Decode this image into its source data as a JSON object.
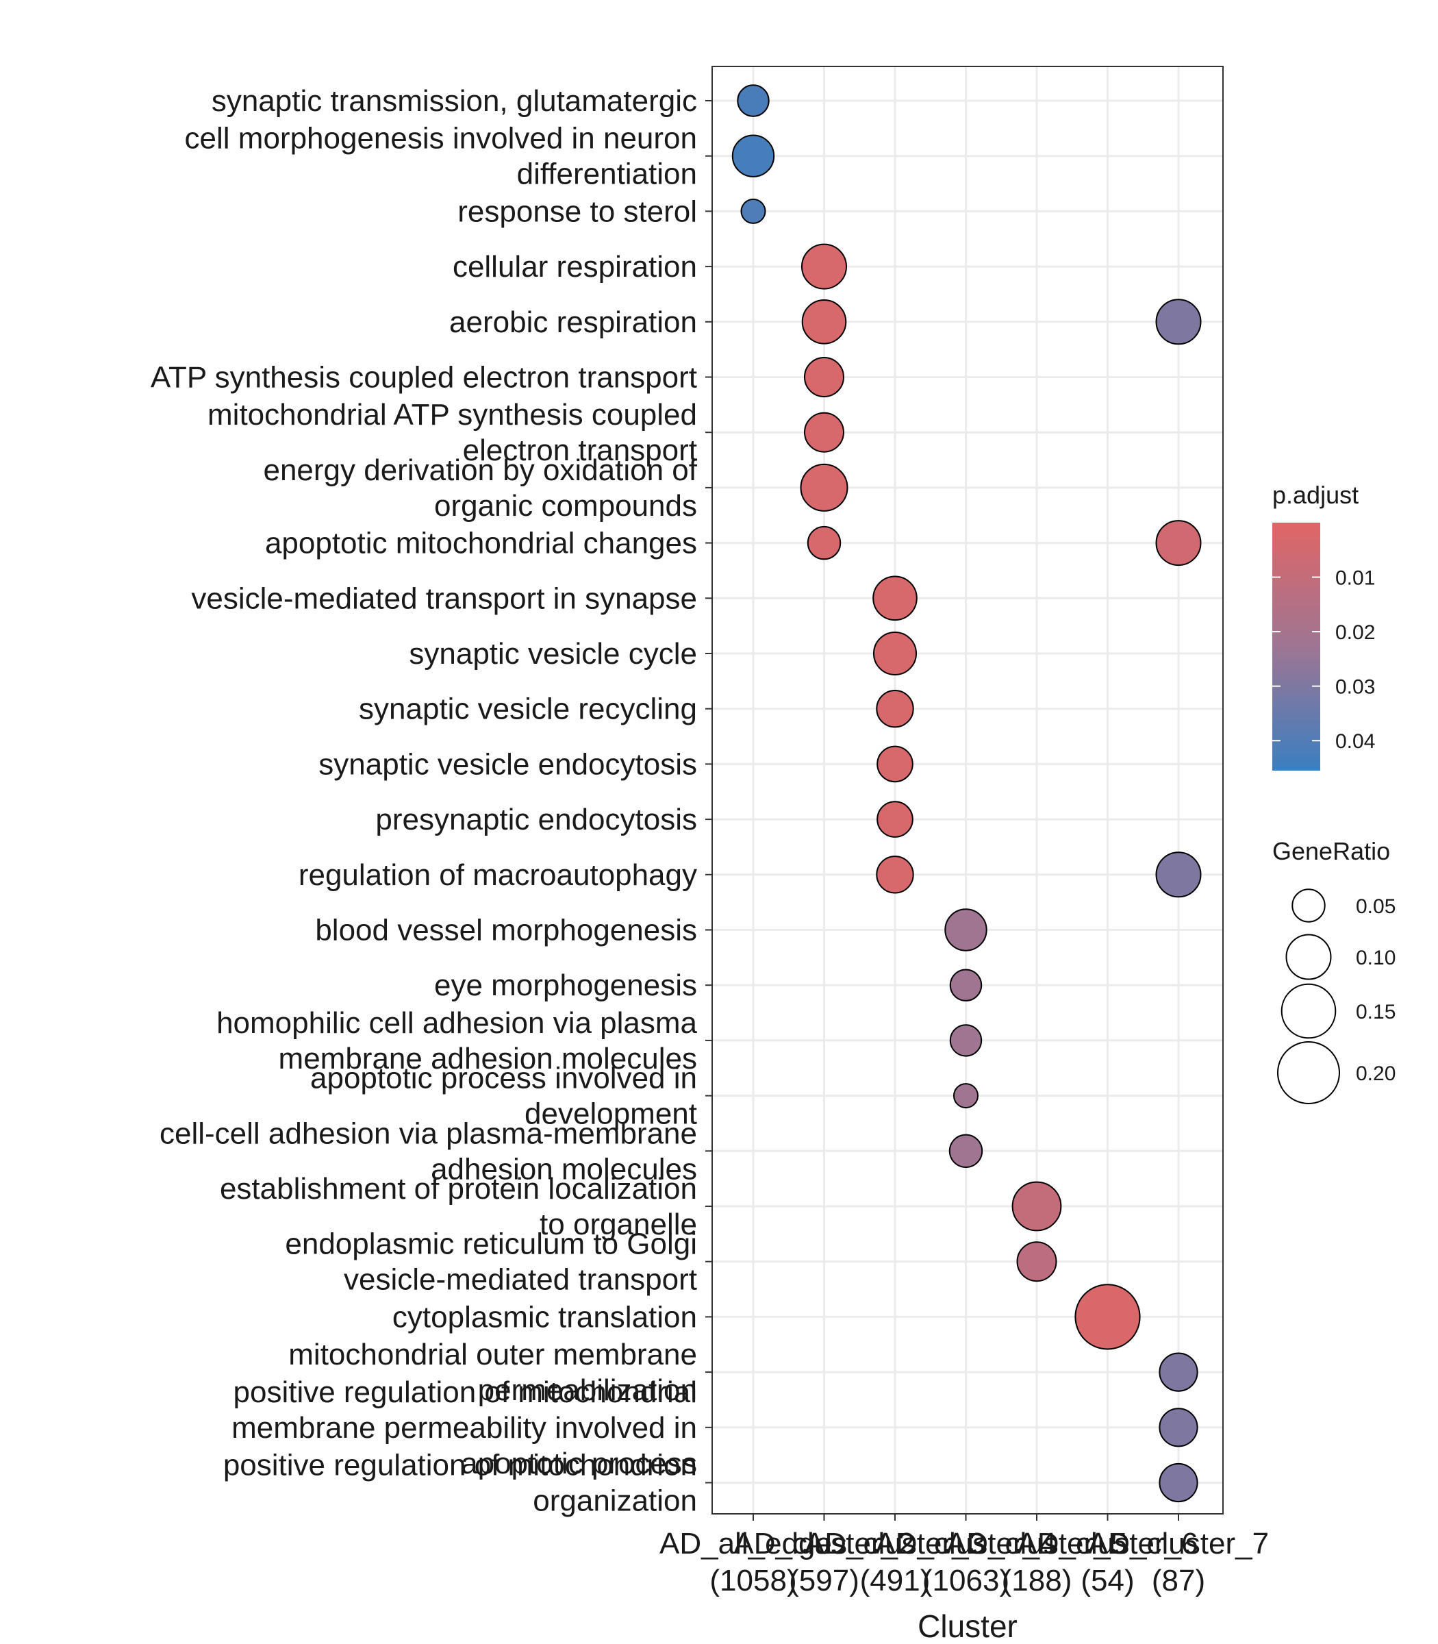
{
  "chart_data": {
    "type": "dotplot",
    "xlabel": "Cluster",
    "ylabel": "",
    "grid": true,
    "clusters": [
      {
        "name": "AD_all_edges",
        "count": "(1058)"
      },
      {
        "name": "AD_cluster_2",
        "count": "(597)"
      },
      {
        "name": "AD_cluster_3",
        "count": "(491)"
      },
      {
        "name": "AD_cluster_4",
        "count": "(1063)"
      },
      {
        "name": "AD_cluster_5",
        "count": "(188)"
      },
      {
        "name": "AD_cluster_6",
        "count": "(54)"
      },
      {
        "name": "AD_cluster_7",
        "count": "(87)"
      }
    ],
    "terms": [
      [
        "synaptic transmission, glutamatergic"
      ],
      [
        "cell morphogenesis involved in neuron",
        "differentiation"
      ],
      [
        "response to sterol"
      ],
      [
        "cellular respiration"
      ],
      [
        "aerobic respiration"
      ],
      [
        "ATP synthesis coupled electron transport"
      ],
      [
        "mitochondrial ATP synthesis coupled",
        "electron transport"
      ],
      [
        "energy derivation by oxidation of",
        "organic compounds"
      ],
      [
        "apoptotic mitochondrial changes"
      ],
      [
        "vesicle-mediated transport in synapse"
      ],
      [
        "synaptic vesicle cycle"
      ],
      [
        "synaptic vesicle recycling"
      ],
      [
        "synaptic vesicle endocytosis"
      ],
      [
        "presynaptic endocytosis"
      ],
      [
        "regulation of macroautophagy"
      ],
      [
        "blood vessel morphogenesis"
      ],
      [
        "eye morphogenesis"
      ],
      [
        "homophilic cell adhesion via plasma",
        "membrane adhesion molecules"
      ],
      [
        "apoptotic process involved in",
        "development"
      ],
      [
        "cell-cell adhesion via plasma-membrane",
        "adhesion molecules"
      ],
      [
        "establishment of protein localization",
        "to organelle"
      ],
      [
        "endoplasmic reticulum to Golgi",
        "vesicle-mediated transport"
      ],
      [
        "cytoplasmic translation"
      ],
      [
        "mitochondrial outer membrane",
        "permeabilization"
      ],
      [
        "positive regulation of mitochondrial",
        "membrane permeability involved in",
        "apoptotic process"
      ],
      [
        "positive regulation of mitochondrion",
        "organization"
      ]
    ],
    "points": [
      {
        "cluster": 0,
        "term": 0,
        "gene_ratio": 0.045,
        "p_adjust": 0.042
      },
      {
        "cluster": 0,
        "term": 1,
        "gene_ratio": 0.085,
        "p_adjust": 0.043
      },
      {
        "cluster": 0,
        "term": 2,
        "gene_ratio": 0.025,
        "p_adjust": 0.041
      },
      {
        "cluster": 1,
        "term": 3,
        "gene_ratio": 0.1,
        "p_adjust": 0.003
      },
      {
        "cluster": 1,
        "term": 4,
        "gene_ratio": 0.095,
        "p_adjust": 0.003
      },
      {
        "cluster": 1,
        "term": 5,
        "gene_ratio": 0.075,
        "p_adjust": 0.003
      },
      {
        "cluster": 1,
        "term": 6,
        "gene_ratio": 0.075,
        "p_adjust": 0.003
      },
      {
        "cluster": 1,
        "term": 7,
        "gene_ratio": 0.11,
        "p_adjust": 0.003
      },
      {
        "cluster": 1,
        "term": 8,
        "gene_ratio": 0.05,
        "p_adjust": 0.003
      },
      {
        "cluster": 2,
        "term": 9,
        "gene_ratio": 0.095,
        "p_adjust": 0.003
      },
      {
        "cluster": 2,
        "term": 10,
        "gene_ratio": 0.09,
        "p_adjust": 0.003
      },
      {
        "cluster": 2,
        "term": 11,
        "gene_ratio": 0.065,
        "p_adjust": 0.003
      },
      {
        "cluster": 2,
        "term": 12,
        "gene_ratio": 0.06,
        "p_adjust": 0.003
      },
      {
        "cluster": 2,
        "term": 13,
        "gene_ratio": 0.06,
        "p_adjust": 0.003
      },
      {
        "cluster": 2,
        "term": 14,
        "gene_ratio": 0.065,
        "p_adjust": 0.003
      },
      {
        "cluster": 3,
        "term": 15,
        "gene_ratio": 0.085,
        "p_adjust": 0.022
      },
      {
        "cluster": 3,
        "term": 16,
        "gene_ratio": 0.045,
        "p_adjust": 0.022
      },
      {
        "cluster": 3,
        "term": 17,
        "gene_ratio": 0.045,
        "p_adjust": 0.022
      },
      {
        "cluster": 3,
        "term": 18,
        "gene_ratio": 0.025,
        "p_adjust": 0.022
      },
      {
        "cluster": 3,
        "term": 19,
        "gene_ratio": 0.05,
        "p_adjust": 0.022
      },
      {
        "cluster": 4,
        "term": 20,
        "gene_ratio": 0.12,
        "p_adjust": 0.01
      },
      {
        "cluster": 4,
        "term": 21,
        "gene_ratio": 0.075,
        "p_adjust": 0.012
      },
      {
        "cluster": 5,
        "term": 22,
        "gene_ratio": 0.22,
        "p_adjust": 0.002
      },
      {
        "cluster": 6,
        "term": 4,
        "gene_ratio": 0.1,
        "p_adjust": 0.03
      },
      {
        "cluster": 6,
        "term": 8,
        "gene_ratio": 0.1,
        "p_adjust": 0.005
      },
      {
        "cluster": 6,
        "term": 14,
        "gene_ratio": 0.1,
        "p_adjust": 0.03
      },
      {
        "cluster": 6,
        "term": 23,
        "gene_ratio": 0.07,
        "p_adjust": 0.03
      },
      {
        "cluster": 6,
        "term": 24,
        "gene_ratio": 0.07,
        "p_adjust": 0.03
      },
      {
        "cluster": 6,
        "term": 25,
        "gene_ratio": 0.07,
        "p_adjust": 0.03
      }
    ],
    "color_legend": {
      "title": "p.adjust",
      "ticks": [
        "0.01",
        "0.02",
        "0.03",
        "0.04"
      ],
      "tick_values": [
        0.01,
        0.02,
        0.03,
        0.04
      ],
      "range": [
        0.0,
        0.0455
      ],
      "low_color": "#e06666",
      "mid_color": "#9e7593",
      "high_color": "#3a7fc0"
    },
    "size_legend": {
      "title": "GeneRatio",
      "ticks": [
        "0.05",
        "0.10",
        "0.15",
        "0.20"
      ],
      "tick_values": [
        0.05,
        0.1,
        0.15,
        0.2
      ]
    }
  }
}
